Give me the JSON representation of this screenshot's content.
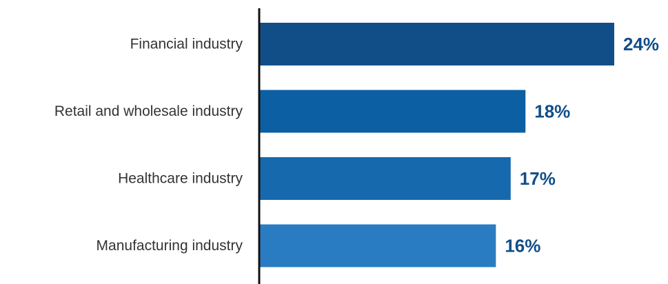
{
  "chart_data": {
    "type": "bar",
    "orientation": "horizontal",
    "categories": [
      "Financial industry",
      "Retail and wholesale industry",
      "Healthcare industry",
      "Manufacturing industry"
    ],
    "values": [
      24,
      18,
      17,
      16
    ],
    "value_labels": [
      "24%",
      "18%",
      "17%",
      "16%"
    ],
    "unit": "%",
    "bar_colors": [
      "#114e87",
      "#0d5fa3",
      "#1769ad",
      "#2a7cc2"
    ],
    "label_color": "#114e87",
    "xlim": [
      0,
      24
    ],
    "grid": false,
    "legend": "none"
  }
}
